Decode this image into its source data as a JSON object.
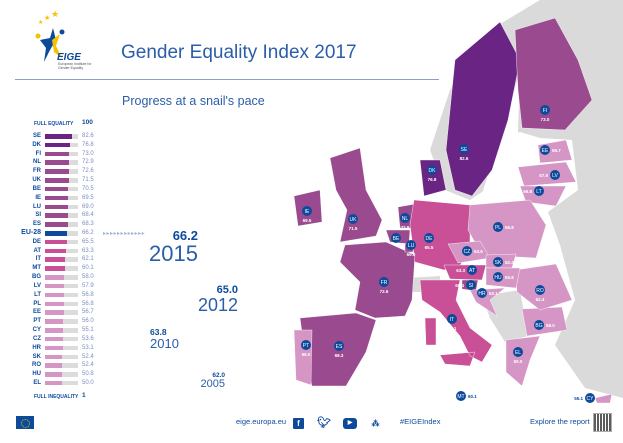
{
  "header": {
    "logo_text": "EIGE",
    "logo_subtitle": "European Institute for Gender Equality",
    "title": "Gender Equality Index 2017",
    "subtitle": "Progress at a snail's pace"
  },
  "scale": {
    "full_equality_label": "FULL EQUALITY",
    "full_equality_value": "100",
    "full_inequality_label": "FULL INEQUALITY",
    "full_inequality_value": "1"
  },
  "colors": {
    "tier1": "#6a2584",
    "tier2": "#9a4a8e",
    "tier3": "#c94f96",
    "tier4": "#d596c5",
    "eu": "#0d4a9b",
    "non_eu_land": "#dadada",
    "text_blue": "#0d4a9b"
  },
  "countries": [
    {
      "code": "SE",
      "value": "82.6",
      "tier": "tier1"
    },
    {
      "code": "DK",
      "value": "76.8",
      "tier": "tier1"
    },
    {
      "code": "FI",
      "value": "73.0",
      "tier": "tier2"
    },
    {
      "code": "NL",
      "value": "72.9",
      "tier": "tier2"
    },
    {
      "code": "FR",
      "value": "72.6",
      "tier": "tier2"
    },
    {
      "code": "UK",
      "value": "71.5",
      "tier": "tier2"
    },
    {
      "code": "BE",
      "value": "70.5",
      "tier": "tier2"
    },
    {
      "code": "IE",
      "value": "69.5",
      "tier": "tier2"
    },
    {
      "code": "LU",
      "value": "69.0",
      "tier": "tier2"
    },
    {
      "code": "SI",
      "value": "68.4",
      "tier": "tier2"
    },
    {
      "code": "ES",
      "value": "68.3",
      "tier": "tier2"
    },
    {
      "code": "EU-28",
      "value": "66.2",
      "tier": "eu"
    },
    {
      "code": "DE",
      "value": "65.5",
      "tier": "tier3"
    },
    {
      "code": "AT",
      "value": "63.3",
      "tier": "tier3"
    },
    {
      "code": "IT",
      "value": "62.1",
      "tier": "tier3"
    },
    {
      "code": "MT",
      "value": "60.1",
      "tier": "tier3"
    },
    {
      "code": "BG",
      "value": "58.0",
      "tier": "tier4"
    },
    {
      "code": "LV",
      "value": "57.9",
      "tier": "tier4"
    },
    {
      "code": "LT",
      "value": "56.8",
      "tier": "tier4"
    },
    {
      "code": "PL",
      "value": "56.8",
      "tier": "tier4"
    },
    {
      "code": "EE",
      "value": "56.7",
      "tier": "tier4"
    },
    {
      "code": "PT",
      "value": "56.0",
      "tier": "tier4"
    },
    {
      "code": "CY",
      "value": "55.1",
      "tier": "tier4"
    },
    {
      "code": "CZ",
      "value": "53.6",
      "tier": "tier4"
    },
    {
      "code": "HR",
      "value": "53.1",
      "tier": "tier4"
    },
    {
      "code": "SK",
      "value": "52.4",
      "tier": "tier4"
    },
    {
      "code": "RO",
      "value": "52.4",
      "tier": "tier4"
    },
    {
      "code": "HU",
      "value": "50.8",
      "tier": "tier4"
    },
    {
      "code": "EL",
      "value": "50.0",
      "tier": "tier4"
    }
  ],
  "timeline": [
    {
      "value": "66.2",
      "year": "2015"
    },
    {
      "value": "65.0",
      "year": "2012"
    },
    {
      "value": "63.8",
      "year": "2010"
    },
    {
      "value": "62.0",
      "year": "2005"
    }
  ],
  "footer": {
    "website": "eige.europa.eu",
    "social_icons": [
      "facebook-icon",
      "twitter-icon",
      "youtube-icon",
      "eurogender-icon"
    ],
    "hashtag": "#EIGEIndex",
    "explore": "Explore the report"
  }
}
